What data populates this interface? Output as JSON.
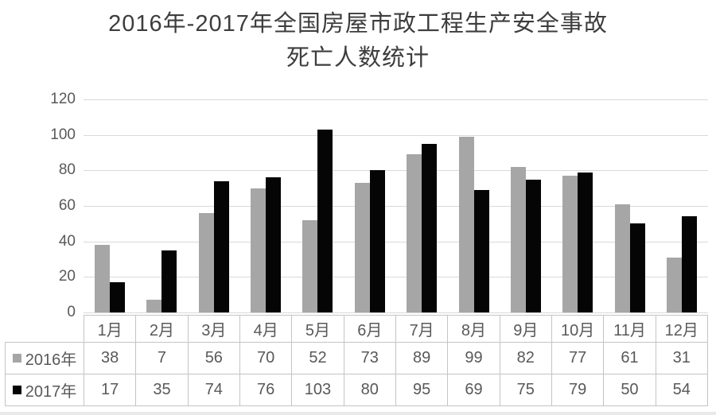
{
  "title": {
    "line1": "2016年-2017年全国房屋市政工程生产安全事故",
    "line2": "死亡人数统计"
  },
  "chart_data": {
    "type": "bar",
    "title": "2016年-2017年全国房屋市政工程生产安全事故死亡人数统计",
    "categories": [
      "1月",
      "2月",
      "3月",
      "4月",
      "5月",
      "6月",
      "7月",
      "8月",
      "9月",
      "10月",
      "11月",
      "12月"
    ],
    "series": [
      {
        "name": "2016年",
        "color": "#a6a6a6",
        "values": [
          38,
          7,
          56,
          70,
          52,
          73,
          89,
          99,
          82,
          77,
          61,
          31
        ]
      },
      {
        "name": "2017年",
        "color": "#050505",
        "values": [
          17,
          35,
          74,
          76,
          103,
          80,
          95,
          69,
          75,
          79,
          50,
          54
        ]
      }
    ],
    "xlabel": "",
    "ylabel": "",
    "ylim": [
      0,
      120
    ],
    "yticks": [
      120,
      100,
      80,
      60,
      40,
      20,
      0
    ],
    "grid": true,
    "legend_position": "table-left",
    "colors": {
      "gridline": "#d9d9d9",
      "table_border": "#c4c4c4",
      "text": "#595959",
      "title_text": "#3d3d3d"
    }
  }
}
